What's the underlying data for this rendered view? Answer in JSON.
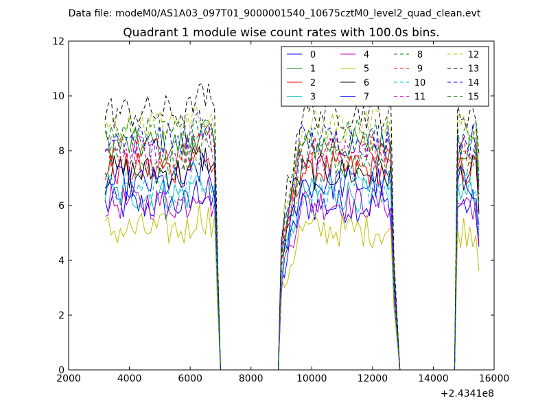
{
  "figure": {
    "suptitle": "Data file: modeM0/AS1A03_097T01_9000001540_10675cztM0_level2_quad_clean.evt"
  },
  "chart_data": {
    "type": "line",
    "title": "Quadrant 1 module wise count rates with 100.0s bins.",
    "xlabel": "",
    "ylabel": "",
    "x_offset_label": "+2.4341e8",
    "xlim": [
      2000,
      16000
    ],
    "ylim": [
      0,
      12
    ],
    "x_ticks": [
      2000,
      4000,
      6000,
      8000,
      10000,
      12000,
      14000,
      16000
    ],
    "x_tick_labels": [
      "2000",
      "4000",
      "6000",
      "8000",
      "10000",
      "12000",
      "14000",
      "16000"
    ],
    "y_ticks": [
      0,
      2,
      4,
      6,
      8,
      10,
      12
    ],
    "y_tick_labels": [
      "0",
      "2",
      "4",
      "6",
      "8",
      "10",
      "12"
    ],
    "grid": false,
    "legend_position": "top-right",
    "legend_columns": 4,
    "segments": [
      {
        "start": 3200,
        "end": 6900
      },
      {
        "start": 9000,
        "end": 12700
      },
      {
        "start": 14800,
        "end": 15500
      }
    ],
    "gaps": [
      {
        "from": 7000,
        "to": 8900
      },
      {
        "from": 12900,
        "to": 14700
      }
    ],
    "bin_width_s": 100,
    "series": [
      {
        "name": "0",
        "color": "#0000ff",
        "dash": "solid",
        "level": 6.0
      },
      {
        "name": "1",
        "color": "#008000",
        "dash": "solid",
        "level": 8.2
      },
      {
        "name": "2",
        "color": "#ff0000",
        "dash": "solid",
        "level": 7.3
      },
      {
        "name": "3",
        "color": "#00bfbf",
        "dash": "solid",
        "level": 6.4
      },
      {
        "name": "4",
        "color": "#bf00bf",
        "dash": "solid",
        "level": 6.1
      },
      {
        "name": "5",
        "color": "#bfbf00",
        "dash": "solid",
        "level": 5.1
      },
      {
        "name": "6",
        "color": "#000000",
        "dash": "solid",
        "level": 7.2
      },
      {
        "name": "7",
        "color": "#0000ff",
        "dash": "solid",
        "level": 6.8
      },
      {
        "name": "8",
        "color": "#008000",
        "dash": "dashed",
        "level": 8.6
      },
      {
        "name": "9",
        "color": "#ff0000",
        "dash": "dashed",
        "level": 8.0
      },
      {
        "name": "10",
        "color": "#00bfbf",
        "dash": "dashed",
        "level": 6.6
      },
      {
        "name": "11",
        "color": "#bf00bf",
        "dash": "dashed",
        "level": 7.9
      },
      {
        "name": "12",
        "color": "#bfbf00",
        "dash": "dashed",
        "level": 8.9
      },
      {
        "name": "13",
        "color": "#000000",
        "dash": "dashed",
        "level": 9.4
      },
      {
        "name": "14",
        "color": "#0000ff",
        "dash": "dashed",
        "level": 8.4
      },
      {
        "name": "15",
        "color": "#008000",
        "dash": "dashed",
        "level": 7.6
      }
    ]
  }
}
